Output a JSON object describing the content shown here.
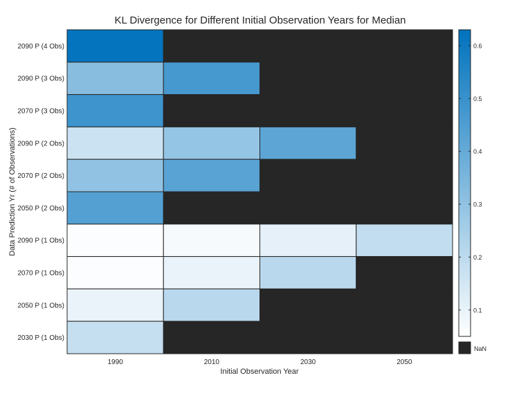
{
  "chart_data": {
    "type": "heatmap",
    "title": "KL Divergence for Different Initial Observation Years for Median",
    "xlabel": "Initial Observation Year",
    "ylabel": "Data Prediction Yr (# of Observations)",
    "x_categories": [
      "1990",
      "2010",
      "2030",
      "2050"
    ],
    "y_categories": [
      "2090 P (4 Obs)",
      "2090 P (3 Obs)",
      "2070 P (3 Obs)",
      "2090 P (2 Obs)",
      "2070 P (2 Obs)",
      "2050 P (2 Obs)",
      "2090 P (1 Obs)",
      "2070 P (1 Obs)",
      "2050 P (1 Obs)",
      "2030 P (1 Obs)"
    ],
    "values": [
      [
        0.62,
        null,
        null,
        null
      ],
      [
        0.32,
        0.47,
        null,
        null
      ],
      [
        0.49,
        null,
        null,
        null
      ],
      [
        0.17,
        0.29,
        0.42,
        null
      ],
      [
        0.3,
        0.43,
        null,
        null
      ],
      [
        0.44,
        null,
        null,
        null
      ],
      [
        0.06,
        0.07,
        0.11,
        0.19
      ],
      [
        0.06,
        0.1,
        0.21,
        null
      ],
      [
        0.1,
        0.21,
        null,
        null
      ],
      [
        0.18,
        null,
        null,
        null
      ]
    ],
    "colorbar": {
      "min": 0.05,
      "max": 0.63,
      "ticks": [
        "0.1",
        "0.2",
        "0.3",
        "0.4",
        "0.5",
        "0.6"
      ],
      "tick_values": [
        0.1,
        0.2,
        0.3,
        0.4,
        0.5,
        0.6
      ],
      "low_color": "#ffffff",
      "high_color": "#0072bd"
    },
    "nan_label": "NaN",
    "nan_color": "#262626",
    "grid": true,
    "legend_position": "right"
  }
}
